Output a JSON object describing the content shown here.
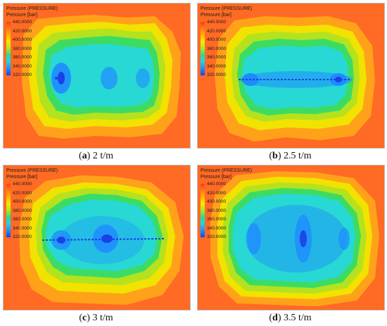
{
  "colorbar": {
    "title": "Pressure (PRESSURE)",
    "unit": "Pressure [bar]",
    "ticks": [
      "440.0000",
      "420.0000",
      "400.0000",
      "380.0000",
      "360.0000",
      "340.0000",
      "320.0000"
    ]
  },
  "colors": {
    "background": "#ff6a24",
    "ring_orange": "#ffa21a",
    "ring_yellow": "#f2e200",
    "ring_yellowgreen": "#b4e21e",
    "ring_green": "#3cdc64",
    "core_cyan": "#28d8d4",
    "core_blue": "#1e8cff",
    "well_blue": "#1c40e6"
  },
  "panels": [
    {
      "id": "a",
      "letter": "a",
      "value": "2 t/m"
    },
    {
      "id": "b",
      "letter": "b",
      "value": "2.5 t/m"
    },
    {
      "id": "c",
      "letter": "c",
      "value": "3 t/m"
    },
    {
      "id": "d",
      "letter": "d",
      "value": "3.5 t/m"
    }
  ]
}
